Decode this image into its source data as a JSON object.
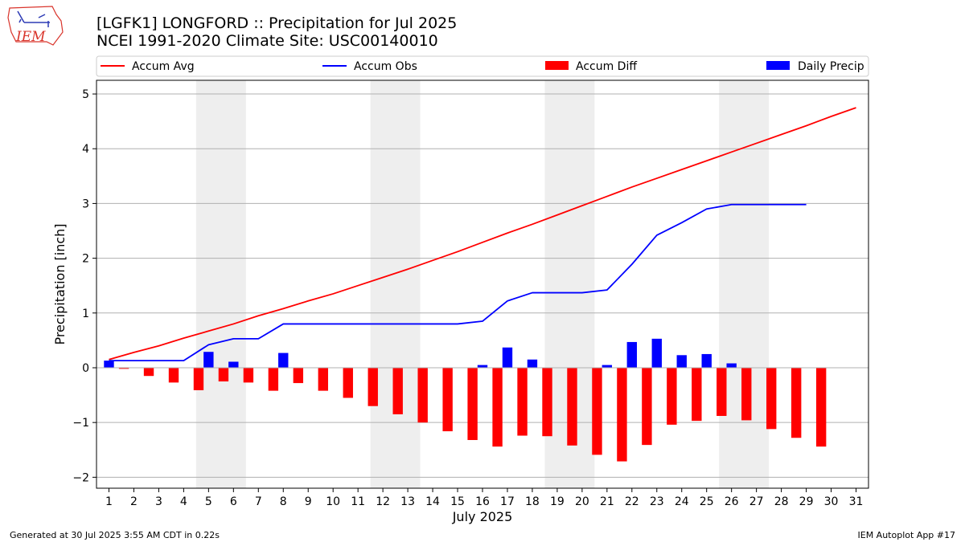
{
  "header": {
    "title_line1": "[LGFK1] LONGFORD :: Precipitation for Jul 2025",
    "title_line2": "NCEI 1991-2020 Climate Site: USC00140010",
    "logo_text": "IEM"
  },
  "footer": {
    "generated": "Generated at 30 Jul 2025 3:55 AM CDT in 0.22s",
    "app": "IEM Autoplot App #17"
  },
  "chart_data": {
    "type": "bar",
    "xlabel": "July 2025",
    "ylabel": "Precipitation [inch]",
    "xlim": [
      0.5,
      31.5
    ],
    "ylim": [
      -2.2,
      5.25
    ],
    "yticks": [
      -2,
      -1,
      0,
      1,
      2,
      3,
      4,
      5
    ],
    "ytick_labels": [
      "−2",
      "−1",
      "0",
      "1",
      "2",
      "3",
      "4",
      "5"
    ],
    "days": [
      1,
      2,
      3,
      4,
      5,
      6,
      7,
      8,
      9,
      10,
      11,
      12,
      13,
      14,
      15,
      16,
      17,
      18,
      19,
      20,
      21,
      22,
      23,
      24,
      25,
      26,
      27,
      28,
      29,
      30,
      31
    ],
    "weekend_spans": [
      [
        4.5,
        6.5
      ],
      [
        11.5,
        13.5
      ],
      [
        18.5,
        20.5
      ],
      [
        25.5,
        27.5
      ]
    ],
    "grid": "horizontal",
    "legend_position": "top",
    "colors": {
      "accum_avg": "#ff0000",
      "accum_obs": "#0000ff",
      "accum_diff": "#ff0000",
      "daily_precip": "#0000ff",
      "weekend_shade": "#eeeeee",
      "grid": "#b0b0b0"
    },
    "series": [
      {
        "name": "Accum Avg",
        "kind": "line",
        "x": [
          1,
          2,
          3,
          4,
          5,
          6,
          7,
          8,
          9,
          10,
          11,
          12,
          13,
          14,
          15,
          16,
          17,
          18,
          19,
          20,
          21,
          22,
          23,
          24,
          25,
          26,
          27,
          28,
          29,
          30,
          31
        ],
        "values": [
          0.15,
          0.28,
          0.4,
          0.54,
          0.67,
          0.8,
          0.95,
          1.08,
          1.22,
          1.35,
          1.5,
          1.65,
          1.8,
          1.96,
          2.12,
          2.29,
          2.46,
          2.62,
          2.79,
          2.96,
          3.13,
          3.3,
          3.46,
          3.62,
          3.78,
          3.94,
          4.1,
          4.26,
          4.42,
          4.59,
          4.75
        ]
      },
      {
        "name": "Accum Obs",
        "kind": "line",
        "x": [
          1,
          2,
          3,
          4,
          5,
          6,
          7,
          8,
          9,
          10,
          11,
          12,
          13,
          14,
          15,
          16,
          17,
          18,
          19,
          20,
          21,
          22,
          23,
          24,
          25,
          26,
          27,
          28,
          29
        ],
        "values": [
          0.13,
          0.13,
          0.13,
          0.13,
          0.42,
          0.53,
          0.53,
          0.8,
          0.8,
          0.8,
          0.8,
          0.8,
          0.8,
          0.8,
          0.8,
          0.85,
          1.22,
          1.37,
          1.37,
          1.37,
          1.42,
          1.89,
          2.42,
          2.65,
          2.9,
          2.98,
          2.98,
          2.98,
          2.98
        ]
      },
      {
        "name": "Accum Diff",
        "kind": "bar",
        "x": [
          1,
          2,
          3,
          4,
          5,
          6,
          7,
          8,
          9,
          10,
          11,
          12,
          13,
          14,
          15,
          16,
          17,
          18,
          19,
          20,
          21,
          22,
          23,
          24,
          25,
          26,
          27,
          28,
          29
        ],
        "values": [
          -0.02,
          -0.15,
          -0.27,
          -0.41,
          -0.25,
          -0.27,
          -0.42,
          -0.28,
          -0.42,
          -0.55,
          -0.7,
          -0.85,
          -1.0,
          -1.16,
          -1.32,
          -1.44,
          -1.24,
          -1.25,
          -1.42,
          -1.59,
          -1.71,
          -1.41,
          -1.04,
          -0.97,
          -0.88,
          -0.96,
          -1.12,
          -1.28,
          -1.44
        ]
      },
      {
        "name": "Daily Precip",
        "kind": "bar",
        "x": [
          1,
          5,
          6,
          8,
          16,
          17,
          18,
          21,
          22,
          23,
          24,
          25,
          26
        ],
        "values": [
          0.13,
          0.29,
          0.11,
          0.27,
          0.05,
          0.37,
          0.15,
          0.05,
          0.47,
          0.53,
          0.23,
          0.25,
          0.08
        ]
      }
    ]
  }
}
